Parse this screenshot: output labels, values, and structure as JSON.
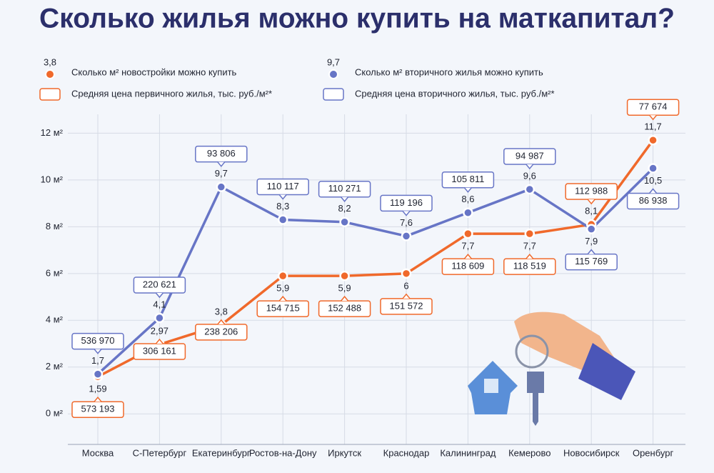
{
  "chart_data": {
    "type": "line",
    "title": "Сколько жилья можно купить на маткапитал?",
    "categories": [
      "Москва",
      "С-Петербург",
      "Екатеринбург",
      "Ростов-на-Дону",
      "Иркутск",
      "Краснодар",
      "Калининград",
      "Кемерово",
      "Новосибирск",
      "Оренбург"
    ],
    "ylim": [
      -1,
      12.5
    ],
    "yticks": [
      {
        "value": 0,
        "label": "0 м²"
      },
      {
        "value": 2,
        "label": "2 м²"
      },
      {
        "value": 4,
        "label": "4 м²"
      },
      {
        "value": 6,
        "label": "6 м²"
      },
      {
        "value": 8,
        "label": "8 м²"
      },
      {
        "value": 10,
        "label": "10 м²"
      },
      {
        "value": 12,
        "label": "12 м²"
      }
    ],
    "grid": true,
    "series": [
      {
        "name": "Сколько м² новостройки можно купить",
        "color": "#f0692b",
        "legend_label": "3,8",
        "values": [
          1.59,
          2.97,
          3.8,
          5.9,
          5.9,
          6,
          7.7,
          7.7,
          8.1,
          11.7
        ],
        "value_labels": [
          "1,59",
          "2,97",
          "3,8",
          "5,9",
          "5,9",
          "6",
          "7,7",
          "7,7",
          "8,1",
          "11,7"
        ],
        "prices": {
          "name": "Средняя цена первичного жилья, тыс. руб./м²*",
          "values": [
            573193,
            306161,
            238206,
            154715,
            152488,
            151572,
            118609,
            118519,
            112988,
            77674
          ],
          "value_labels": [
            "573 193",
            "306 161",
            "238 206",
            "154 715",
            "152 488",
            "151 572",
            "118 609",
            "118 519",
            "112 988",
            "77 674"
          ]
        }
      },
      {
        "name": "Сколько м² вторичного жилья можно купить",
        "color": "#6775c6",
        "legend_label": "9,7",
        "values": [
          1.7,
          4.1,
          9.7,
          8.3,
          8.2,
          7.6,
          8.6,
          9.6,
          7.9,
          10.5
        ],
        "value_labels": [
          "1,7",
          "4,1",
          "9,7",
          "8,3",
          "8,2",
          "7,6",
          "8,6",
          "9,6",
          "7,9",
          "10,5"
        ],
        "prices": {
          "name": "Средняя цена вторичного жилья, тыс. руб./м²*",
          "values": [
            536970,
            220621,
            93806,
            110117,
            110271,
            119196,
            105811,
            94987,
            115769,
            86938
          ],
          "value_labels": [
            "536 970",
            "220 621",
            "93 806",
            "110 117",
            "110 271",
            "119 196",
            "105 811",
            "94 987",
            "115 769",
            "86 938"
          ]
        }
      }
    ]
  }
}
